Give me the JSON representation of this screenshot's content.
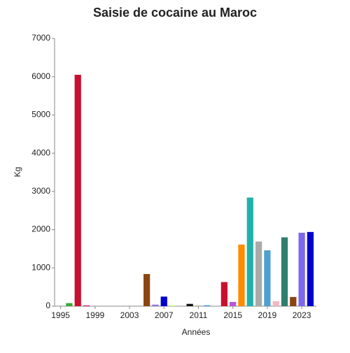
{
  "chart_data": {
    "type": "bar",
    "title": "Saisie de cocaine au Maroc",
    "x_label": "Années",
    "y_label": "Kg",
    "x": [
      1996,
      1997,
      1998,
      2005,
      2006,
      2007,
      2008,
      2010,
      2011,
      2012,
      2014,
      2015,
      2016,
      2017,
      2018,
      2019,
      2020,
      2021,
      2022,
      2023,
      2024
    ],
    "values": [
      80,
      6050,
      20,
      840,
      40,
      250,
      10,
      60,
      20,
      20,
      630,
      110,
      1610,
      2840,
      1690,
      1460,
      130,
      1800,
      240,
      1920,
      1940
    ],
    "colors": [
      "#3aaa35",
      "#c8102e",
      "#c71585",
      "#8b4513",
      "#9370db",
      "#0000cd",
      "#7fff00",
      "#111111",
      "#bbbbbb",
      "#1e90ff",
      "#c8102e",
      "#ba55d3",
      "#ff8c00",
      "#20b2aa",
      "#a9a9a9",
      "#4f9fcf",
      "#f4b6c2",
      "#2f7f6f",
      "#8b4513",
      "#7b68ee",
      "#0000cd"
    ],
    "xlim": [
      1994.3,
      2024.7
    ],
    "xticks": [
      1995,
      1999,
      2003,
      2007,
      2011,
      2015,
      2019,
      2023
    ],
    "ylim": [
      0,
      7000
    ],
    "yticks": [
      0,
      1000,
      2000,
      3000,
      4000,
      5000,
      6000,
      7000
    ],
    "grid": false
  }
}
